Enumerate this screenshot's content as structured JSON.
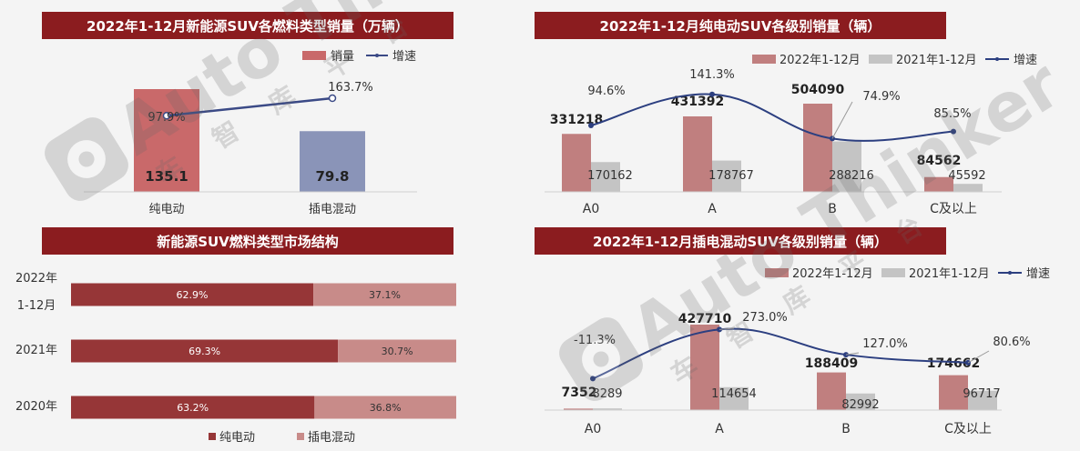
{
  "chart_data": [
    {
      "id": "c1",
      "type": "bar",
      "title": "2022年1-12月新能源SUV各燃料类型销量（万辆）",
      "categories": [
        "纯电动",
        "插电混动"
      ],
      "series": [
        {
          "name": "销量",
          "type": "bar",
          "values": [
            135.1,
            79.8
          ],
          "colors": [
            "#c9696a",
            "#8a94b8"
          ]
        },
        {
          "name": "增速",
          "type": "line",
          "values": [
            97.9,
            163.7
          ],
          "labels": [
            "97.9%",
            "163.7%"
          ],
          "color": "#3b4a86"
        }
      ],
      "ylim": [
        0,
        150
      ]
    },
    {
      "id": "c2",
      "type": "bar",
      "title": "2022年1-12月纯电动SUV各级别销量（辆）",
      "categories": [
        "A0",
        "A",
        "B",
        "C及以上"
      ],
      "series": [
        {
          "name": "2022年1-12月",
          "type": "bar",
          "values": [
            331218,
            431392,
            504090,
            84562
          ],
          "color": "#c07f7f"
        },
        {
          "name": "2021年1-12月",
          "type": "bar",
          "values": [
            170162,
            178767,
            288216,
            45592
          ],
          "color": "#c4c4c4"
        },
        {
          "name": "增速",
          "type": "line",
          "values": [
            94.6,
            141.3,
            74.9,
            85.5
          ],
          "labels": [
            "94.6%",
            "141.3%",
            "74.9%",
            "85.5%"
          ],
          "color": "#2c3f80"
        }
      ],
      "ylim": [
        0,
        600000
      ]
    },
    {
      "id": "c3",
      "type": "bar",
      "orientation": "horizontal-stacked-100",
      "title": "新能源SUV燃料类型市场结构",
      "categories": [
        "2022年 1-12月",
        "2021年",
        "2020年"
      ],
      "series": [
        {
          "name": "纯电动",
          "values": [
            62.9,
            69.3,
            63.2
          ],
          "labels": [
            "62.9%",
            "69.3%",
            "63.2%"
          ],
          "color": "#963637"
        },
        {
          "name": "插电混动",
          "values": [
            37.1,
            30.7,
            36.8
          ],
          "labels": [
            "37.1%",
            "30.7%",
            "36.8%"
          ],
          "color": "#c88b89"
        }
      ],
      "xlim": [
        0,
        100
      ],
      "legend": "bottom"
    },
    {
      "id": "c4",
      "type": "bar",
      "title": "2022年1-12月插电混动SUV各级别销量（辆）",
      "categories": [
        "A0",
        "A",
        "B",
        "C及以上"
      ],
      "series": [
        {
          "name": "2022年1-12月",
          "type": "bar",
          "values": [
            7352,
            427710,
            188409,
            174662
          ],
          "color": "#c07f7f"
        },
        {
          "name": "2021年1-12月",
          "type": "bar",
          "values": [
            8289,
            114654,
            82992,
            96717
          ],
          "color": "#c4c4c4"
        },
        {
          "name": "增速",
          "type": "line",
          "values": [
            -11.3,
            273.0,
            127.0,
            80.6
          ],
          "labels": [
            "-11.3%",
            "273.0%",
            "127.0%",
            "80.6%"
          ],
          "color": "#2c3f80"
        }
      ],
      "ylim": [
        0,
        500000
      ]
    }
  ],
  "watermark": {
    "brand": "Auto Thinker",
    "sub": "车 智 库 平 台"
  }
}
